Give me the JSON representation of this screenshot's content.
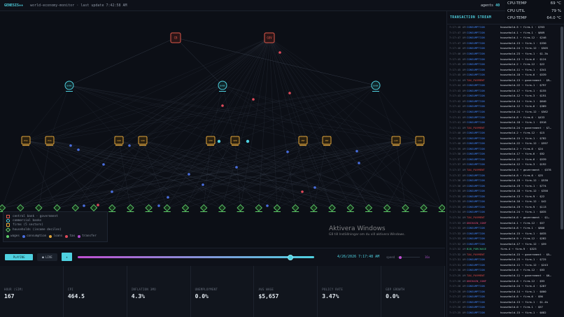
{
  "topbar": {
    "brand": "GENESIS++",
    "subtitle": "world-economy-monitor · last update 7:42:58 AM",
    "agents_label": "agents",
    "agents_count": "40"
  },
  "cpu_overlay": [
    {
      "label": "CPU-TEMP",
      "value": "69 °C"
    },
    {
      "label": "CPU UTIL",
      "value": "79 %"
    },
    {
      "label": "CPU-TEMP",
      "value": "64.0 °C"
    }
  ],
  "network": {
    "central": [
      {
        "code": "CB"
      },
      {
        "code": "GOV"
      }
    ],
    "banks": [
      {
        "code": "BANK"
      },
      {
        "code": "BANK"
      },
      {
        "code": "BANK"
      }
    ],
    "firms": [
      {
        "code": "ESS"
      },
      {
        "code": "ESS"
      },
      {
        "code": "SUR"
      },
      {
        "code": "SUR"
      },
      {
        "code": "SER"
      },
      {
        "code": "SER"
      },
      {
        "code": "INT"
      },
      {
        "code": "INT"
      },
      {
        "code": "LUX"
      },
      {
        "code": "LUX"
      }
    ],
    "household_count": 25,
    "colors": {
      "central": "#e0584a",
      "bank": "#4fd1e0",
      "firm": "#e0a43a",
      "household": "#5fce6a",
      "wages": "#5fce6a",
      "consumption": "#4a6fe0",
      "loans": "#e0a43a",
      "tax": "#e04a5a",
      "transfer": "#b04fd1"
    }
  },
  "legend": {
    "items": [
      "central bank · government",
      "commercial banks",
      "firms (5 sectors)",
      "households (income deciles)"
    ],
    "flows": [
      "wages",
      "consumption",
      "loans",
      "tax",
      "transfer"
    ]
  },
  "controls": {
    "playing_label": "PLAYING",
    "live_label": "■ LIVE",
    "pause_label": "⏸",
    "timeline_progress": 0.9,
    "clock": "4/26/2026 7:17:48 AM",
    "speed_label": "speed",
    "speed_value": "16x",
    "speed_progress": 0.05
  },
  "metrics": [
    {
      "label": "HOUR (SIM)",
      "value": "167"
    },
    {
      "label": "CPI",
      "value": "464.5"
    },
    {
      "label": "INFLATION 3MO",
      "value": "4.3%"
    },
    {
      "label": "UNEMPLOYMENT",
      "value": "0.0%"
    },
    {
      "label": "AVG WAGE",
      "value": "$5,657"
    },
    {
      "label": "POLICY RATE",
      "value": "3.47%"
    },
    {
      "label": "GDP GROWTH",
      "value": "0.0%"
    }
  ],
  "stream": {
    "title": "TRANSACTION STREAM",
    "rows": [
      {
        "t": "7:17:48 AM",
        "k": "CONSUMPTION",
        "d": "household-5 → firm-1 · $763"
      },
      {
        "t": "7:17:47 AM",
        "k": "CONSUMPTION",
        "d": "household-1 → firm-1 · $609"
      },
      {
        "t": "7:17:47 AM",
        "k": "CONSUMPTION",
        "d": "household-1 → firm-12 · $246"
      },
      {
        "t": "7:17:47 AM",
        "k": "CONSUMPTION",
        "d": "household-13 → firm-1 · $330"
      },
      {
        "t": "7:17:46 AM",
        "k": "CONSUMPTION",
        "d": "household-24 → firm-12 · $505"
      },
      {
        "t": "7:17:46 AM",
        "k": "CONSUMPTION",
        "d": "household-23 → firm-1 · $1.3k"
      },
      {
        "t": "7:17:45 AM",
        "k": "CONSUMPTION",
        "d": "household-13 → firm-6 · $124"
      },
      {
        "t": "7:17:45 AM",
        "k": "CONSUMPTION",
        "d": "household-2 → firm-12 · $22"
      },
      {
        "t": "7:17:45 AM",
        "k": "CONSUMPTION",
        "d": "household-11 → firm-1 · $341"
      },
      {
        "t": "7:17:45 AM",
        "k": "CONSUMPTION",
        "d": "household-18 → firm-6 · $539"
      },
      {
        "t": "7:17:44 AM",
        "k": "TAX_PAYMENT",
        "d": "household-13 → government · $9…"
      },
      {
        "t": "7:17:44 AM",
        "k": "CONSUMPTION",
        "d": "household-22 → firm-1 · $797"
      },
      {
        "t": "7:17:43 AM",
        "k": "CONSUMPTION",
        "d": "household-17 → firm-1 · $155"
      },
      {
        "t": "7:17:43 AM",
        "k": "CONSUMPTION",
        "d": "household-12 → firm-3 · $191"
      },
      {
        "t": "7:17:42 AM",
        "k": "CONSUMPTION",
        "d": "household-14 → firm-1 · $640"
      },
      {
        "t": "7:17:42 AM",
        "k": "CONSUMPTION",
        "d": "household-12 → firm-6 · $389"
      },
      {
        "t": "7:17:42 AM",
        "k": "CONSUMPTION",
        "d": "household-24 → firm-12 · $562"
      },
      {
        "t": "7:17:41 AM",
        "k": "CONSUMPTION",
        "d": "household-8 → firm-6 · $433"
      },
      {
        "t": "7:17:41 AM",
        "k": "CONSUMPTION",
        "d": "household-18 → firm-1 · $918"
      },
      {
        "t": "7:17:41 AM",
        "k": "TAX_PAYMENT",
        "d": "household-24 → government · $7…"
      },
      {
        "t": "7:17:40 AM",
        "k": "CONSUMPTION",
        "d": "household-2 → firm-12 · $15"
      },
      {
        "t": "7:17:40 AM",
        "k": "CONSUMPTION",
        "d": "household-15 → firm-1 · $782"
      },
      {
        "t": "7:17:40 AM",
        "k": "CONSUMPTION",
        "d": "household-22 → firm-12 · $597"
      },
      {
        "t": "7:17:39 AM",
        "k": "CONSUMPTION",
        "d": "household-2 → firm-6 · $24"
      },
      {
        "t": "7:17:38 AM",
        "k": "CONSUMPTION",
        "d": "household-17 → firm-6 · $92"
      },
      {
        "t": "7:17:37 AM",
        "k": "CONSUMPTION",
        "d": "household-22 → firm-6 · $539"
      },
      {
        "t": "7:17:37 AM",
        "k": "CONSUMPTION",
        "d": "household-12 → firm-3 · $192"
      },
      {
        "t": "7:17:37 AM",
        "k": "TAX_PAYMENT",
        "d": "household-3 → government · $578"
      },
      {
        "t": "7:17:37 AM",
        "k": "CONSUMPTION",
        "d": "household-8 → firm-6 · $25"
      },
      {
        "t": "7:17:36 AM",
        "k": "CONSUMPTION",
        "d": "household-19 → firm-12 · $530"
      },
      {
        "t": "7:17:36 AM",
        "k": "CONSUMPTION",
        "d": "household-19 → firm-1 · $774"
      },
      {
        "t": "7:17:35 AM",
        "k": "CONSUMPTION",
        "d": "household-18 → firm-12 · $356"
      },
      {
        "t": "7:17:35 AM",
        "k": "CONSUMPTION",
        "d": "household-13 → firm-9 · $22"
      },
      {
        "t": "7:17:35 AM",
        "k": "CONSUMPTION",
        "d": "household-16 → firm-12 · $42"
      },
      {
        "t": "7:17:35 AM",
        "k": "CONSUMPTION",
        "d": "household-19 → firm-9 · $113"
      },
      {
        "t": "7:17:34 AM",
        "k": "CONSUMPTION",
        "d": "household-24 → firm-1 · $835"
      },
      {
        "t": "7:17:34 AM",
        "k": "TAX_PAYMENT",
        "d": "household-6 → government · $1…"
      },
      {
        "t": "7:17:33 AM",
        "k": "ONCHAIN_CONF",
        "d": "household-1 → firm-12 · $57"
      },
      {
        "t": "7:17:33 AM",
        "k": "CONSUMPTION",
        "d": "household-8 → firm-1 · $800"
      },
      {
        "t": "7:17:33 AM",
        "k": "CONSUMPTION",
        "d": "household-15 → firm-1 · $635"
      },
      {
        "t": "7:17:33 AM",
        "k": "CONSUMPTION",
        "d": "household-9 → firm-12 · $282"
      },
      {
        "t": "7:17:32 AM",
        "k": "CONSUMPTION",
        "d": "household-17 → firm-12 · $59"
      },
      {
        "t": "7:17:32 AM",
        "k": "B2B_PURCHASE",
        "d": "firm-4 → firm-9 · $323"
      },
      {
        "t": "7:17:32 AM",
        "k": "TAX_PAYMENT",
        "d": "household-15 → government · $5…"
      },
      {
        "t": "7:17:31 AM",
        "k": "CONSUMPTION",
        "d": "household-23 → firm-1 · $725"
      },
      {
        "t": "7:17:31 AM",
        "k": "CONSUMPTION",
        "d": "household-11 → firm-12 · $243"
      },
      {
        "t": "7:17:30 AM",
        "k": "CONSUMPTION",
        "d": "household-6 → firm-12 · $93"
      },
      {
        "t": "7:17:29 AM",
        "k": "TAX_PAYMENT",
        "d": "household-11 → government · $6…"
      },
      {
        "t": "7:17:28 AM",
        "k": "ONCHAIN_CONF",
        "d": "household-6 → firm-12 · $93"
      },
      {
        "t": "7:17:28 AM",
        "k": "CONSUMPTION",
        "d": "household-24 → firm-4 · $287"
      },
      {
        "t": "7:17:28 AM",
        "k": "CONSUMPTION",
        "d": "household-14 → firm-1 · $600"
      },
      {
        "t": "7:17:27 AM",
        "k": "CONSUMPTION",
        "d": "household-6 → firm-6 · $90"
      },
      {
        "t": "7:17:27 AM",
        "k": "CONSUMPTION",
        "d": "household-13 → firm-1 · $1.4k"
      },
      {
        "t": "7:17:26 AM",
        "k": "CONSUMPTION",
        "d": "household-0 → firm-1 · $57"
      },
      {
        "t": "7:17:25 AM",
        "k": "CONSUMPTION",
        "d": "household-15 → firm-1 · $682"
      }
    ]
  },
  "watermark": {
    "title": "Aktivera Windows",
    "subtitle": "Gå till Inställningar om du vill aktivera Windows."
  }
}
